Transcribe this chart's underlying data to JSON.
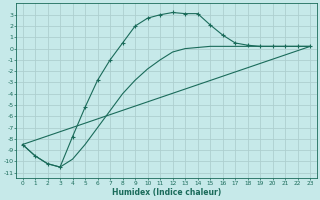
{
  "xlabel": "Humidex (Indice chaleur)",
  "ylabel": "",
  "background_color": "#c6e9e9",
  "grid_color": "#aecfcf",
  "line_color": "#1a6b5a",
  "xlim": [
    -0.5,
    23.5
  ],
  "ylim": [
    -11.5,
    4.0
  ],
  "yticks": [
    3,
    2,
    1,
    0,
    -1,
    -2,
    -3,
    -4,
    -5,
    -6,
    -7,
    -8,
    -9,
    -10,
    -11
  ],
  "xticks": [
    0,
    1,
    2,
    3,
    4,
    5,
    6,
    7,
    8,
    9,
    10,
    11,
    12,
    13,
    14,
    15,
    16,
    17,
    18,
    19,
    20,
    21,
    22,
    23
  ],
  "curve1_x": [
    0,
    1,
    2,
    3,
    4,
    5,
    6,
    7,
    8,
    9,
    10,
    11,
    12,
    13,
    14,
    15,
    16,
    17,
    18,
    19,
    20,
    21,
    22,
    23
  ],
  "curve1_y": [
    -8.5,
    -9.5,
    -10.2,
    -10.5,
    -7.8,
    -5.2,
    -2.8,
    -1.0,
    0.5,
    2.0,
    2.7,
    3.0,
    3.2,
    3.1,
    3.1,
    2.1,
    1.2,
    0.5,
    0.3,
    0.2,
    0.2,
    0.2,
    0.2,
    0.2
  ],
  "curve2_x": [
    0,
    1,
    2,
    3,
    4,
    5,
    6,
    7,
    8,
    9,
    10,
    11,
    12,
    13,
    14,
    15,
    16,
    17,
    18,
    19,
    20,
    21,
    22,
    23
  ],
  "curve2_y": [
    -8.5,
    -9.5,
    -10.2,
    -10.5,
    -9.8,
    -8.5,
    -7.0,
    -5.5,
    -4.0,
    -2.8,
    -1.8,
    -1.0,
    -0.3,
    0.0,
    0.1,
    0.2,
    0.2,
    0.2,
    0.2,
    0.2,
    0.2,
    0.2,
    0.2,
    0.2
  ],
  "curve3_x": [
    0,
    23
  ],
  "curve3_y": [
    -8.5,
    0.2
  ]
}
